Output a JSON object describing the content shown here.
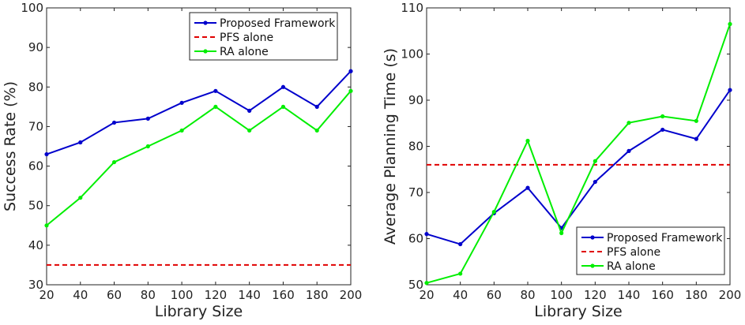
{
  "chart_data": [
    {
      "type": "line",
      "xlabel": "Library Size",
      "ylabel": "Success Rate (%)",
      "xlim": [
        20,
        200
      ],
      "ylim": [
        30,
        100
      ],
      "xticks": [
        20,
        40,
        60,
        80,
        100,
        120,
        140,
        160,
        180,
        200
      ],
      "yticks": [
        30,
        40,
        50,
        60,
        70,
        80,
        90,
        100
      ],
      "grid": false,
      "legend_position": "top-right",
      "x": [
        20,
        40,
        60,
        80,
        100,
        120,
        140,
        160,
        180,
        200
      ],
      "series": [
        {
          "name": "Proposed Framework",
          "color": "#0000cc",
          "style": "solid-markers",
          "values": [
            63,
            66,
            71,
            72,
            76,
            79,
            74,
            80,
            75,
            84
          ]
        },
        {
          "name": "PFS alone",
          "color": "#e00000",
          "style": "dashed",
          "values": [
            35,
            35,
            35,
            35,
            35,
            35,
            35,
            35,
            35,
            35
          ]
        },
        {
          "name": "RA alone",
          "color": "#00ee00",
          "style": "solid-markers",
          "values": [
            45,
            52,
            61,
            65,
            69,
            75,
            69,
            75,
            69,
            79
          ]
        }
      ]
    },
    {
      "type": "line",
      "xlabel": "Library Size",
      "ylabel": "Average Planning Time (s)",
      "xlim": [
        20,
        200
      ],
      "ylim": [
        50,
        110
      ],
      "xticks": [
        20,
        40,
        60,
        80,
        100,
        120,
        140,
        160,
        180,
        200
      ],
      "yticks": [
        50,
        60,
        70,
        80,
        90,
        100,
        110
      ],
      "grid": false,
      "legend_position": "bottom-right",
      "x": [
        20,
        40,
        60,
        80,
        100,
        120,
        140,
        160,
        180,
        200
      ],
      "series": [
        {
          "name": "Proposed Framework",
          "color": "#0000cc",
          "style": "solid-markers",
          "values": [
            61,
            58.8,
            65.5,
            71,
            62.3,
            72.3,
            79,
            83.6,
            81.6,
            92.2
          ]
        },
        {
          "name": "PFS alone",
          "color": "#e00000",
          "style": "dashed",
          "values": [
            76,
            76,
            76,
            76,
            76,
            76,
            76,
            76,
            76,
            76
          ]
        },
        {
          "name": "RA alone",
          "color": "#00ee00",
          "style": "solid-markers",
          "values": [
            50.4,
            52.4,
            65.8,
            81.2,
            61.2,
            76.8,
            85.1,
            86.5,
            85.5,
            106.5
          ]
        }
      ]
    }
  ]
}
